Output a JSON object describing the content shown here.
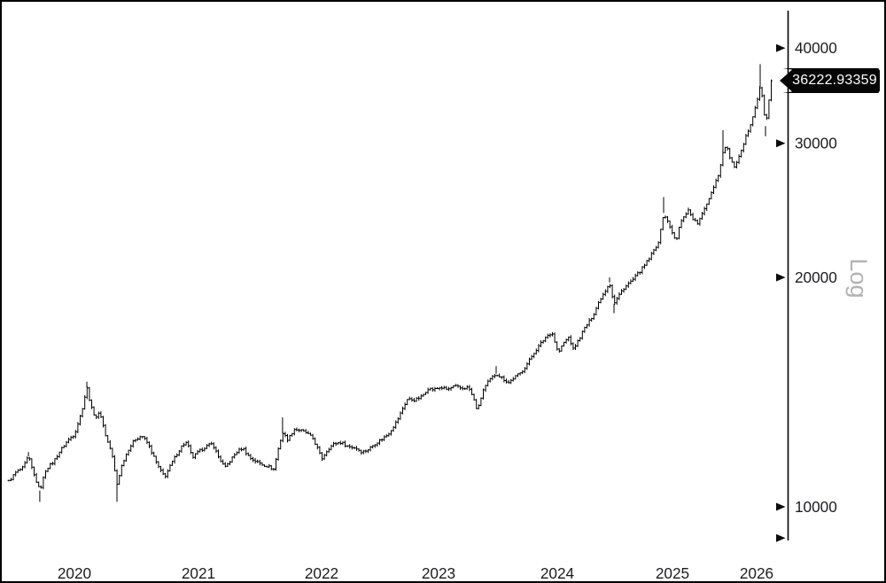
{
  "window": {
    "background": "#ffffff",
    "frame_color": "#000000"
  },
  "chart_data": {
    "type": "ohlc-bar",
    "title": "",
    "scale": "log",
    "scale_label": "Log",
    "grid": "off",
    "series_color": "#000000",
    "axis_color": "#000000",
    "label_color": "#1c1c22",
    "scale_label_color": "#b3b3b3",
    "tag_bg": "#060606",
    "tag_text_color": "#ffffff",
    "last_price": 36222.93359,
    "last_price_label": "36222.93359",
    "x_axis": {
      "labels": [
        "2020",
        "2021",
        "2022",
        "2023",
        "2024",
        "2025",
        "2026"
      ],
      "year_positions": [
        [
          2020,
          82
        ],
        [
          2021,
          222
        ],
        [
          2022,
          361
        ],
        [
          2023,
          493
        ],
        [
          2024,
          627
        ],
        [
          2025,
          757
        ],
        [
          2026,
          852
        ]
      ]
    },
    "y_axis": {
      "side": "right",
      "ticks": [
        {
          "value": 40000,
          "label": "40000"
        },
        {
          "value": 30000,
          "label": "30000"
        },
        {
          "value": 20000,
          "label": "20000"
        },
        {
          "value": 10000,
          "label": "10000"
        },
        {
          "value": 9100,
          "label": ""
        }
      ],
      "range": [
        9000,
        43500
      ]
    },
    "points": [
      [
        2019.471,
        10800
      ],
      [
        2019.529,
        11100
      ],
      [
        2019.586,
        11250
      ],
      [
        2019.629,
        11650
      ],
      [
        2019.671,
        11050
      ],
      [
        2019.721,
        10500
      ],
      [
        2019.771,
        11200
      ],
      [
        2019.829,
        11450
      ],
      [
        2019.886,
        11850
      ],
      [
        2019.943,
        12200
      ],
      [
        2020.0,
        12450
      ],
      [
        2020.057,
        13300
      ],
      [
        2020.1,
        14350
      ],
      [
        2020.136,
        13500
      ],
      [
        2020.171,
        13100
      ],
      [
        2020.207,
        13300
      ],
      [
        2020.257,
        12300
      ],
      [
        2020.3,
        11800
      ],
      [
        2020.343,
        10700
      ],
      [
        2020.386,
        11400
      ],
      [
        2020.436,
        11900
      ],
      [
        2020.486,
        12250
      ],
      [
        2020.543,
        12400
      ],
      [
        2020.593,
        12100
      ],
      [
        2020.643,
        11600
      ],
      [
        2020.686,
        11200
      ],
      [
        2020.729,
        10950
      ],
      [
        2020.771,
        11300
      ],
      [
        2020.821,
        11700
      ],
      [
        2020.871,
        12050
      ],
      [
        2020.907,
        12150
      ],
      [
        2020.95,
        11600
      ],
      [
        2021.0,
        11800
      ],
      [
        2021.058,
        12000
      ],
      [
        2021.115,
        12100
      ],
      [
        2021.165,
        11600
      ],
      [
        2021.216,
        11250
      ],
      [
        2021.259,
        11500
      ],
      [
        2021.309,
        11800
      ],
      [
        2021.36,
        11950
      ],
      [
        2021.417,
        11600
      ],
      [
        2021.475,
        11450
      ],
      [
        2021.525,
        11350
      ],
      [
        2021.568,
        11300
      ],
      [
        2021.612,
        11200
      ],
      [
        2021.655,
        12050
      ],
      [
        2021.683,
        12500
      ],
      [
        2021.727,
        12250
      ],
      [
        2021.777,
        12650
      ],
      [
        2021.827,
        12600
      ],
      [
        2021.878,
        12500
      ],
      [
        2021.928,
        12300
      ],
      [
        2021.971,
        11900
      ],
      [
        2022.0,
        11550
      ],
      [
        2022.053,
        11900
      ],
      [
        2022.106,
        12100
      ],
      [
        2022.167,
        12150
      ],
      [
        2022.227,
        12000
      ],
      [
        2022.288,
        11950
      ],
      [
        2022.348,
        11800
      ],
      [
        2022.402,
        11900
      ],
      [
        2022.455,
        12100
      ],
      [
        2022.508,
        12250
      ],
      [
        2022.568,
        12450
      ],
      [
        2022.629,
        12850
      ],
      [
        2022.659,
        13100
      ],
      [
        2022.697,
        13500
      ],
      [
        2022.735,
        13850
      ],
      [
        2022.795,
        13800
      ],
      [
        2022.856,
        13950
      ],
      [
        2022.909,
        14300
      ],
      [
        2022.962,
        14250
      ],
      [
        2023.015,
        14350
      ],
      [
        2023.075,
        14250
      ],
      [
        2023.134,
        14400
      ],
      [
        2023.194,
        14300
      ],
      [
        2023.254,
        14350
      ],
      [
        2023.299,
        13800
      ],
      [
        2023.328,
        13350
      ],
      [
        2023.373,
        14200
      ],
      [
        2023.425,
        14650
      ],
      [
        2023.485,
        14950
      ],
      [
        2023.537,
        14750
      ],
      [
        2023.59,
        14550
      ],
      [
        2023.642,
        14800
      ],
      [
        2023.694,
        15000
      ],
      [
        2023.746,
        15400
      ],
      [
        2023.799,
        15900
      ],
      [
        2023.851,
        16300
      ],
      [
        2023.903,
        16700
      ],
      [
        2023.955,
        16950
      ],
      [
        2024.008,
        15900
      ],
      [
        2024.054,
        16400
      ],
      [
        2024.1,
        16700
      ],
      [
        2024.138,
        16100
      ],
      [
        2024.185,
        16550
      ],
      [
        2024.231,
        17100
      ],
      [
        2024.277,
        17500
      ],
      [
        2024.323,
        18000
      ],
      [
        2024.369,
        18700
      ],
      [
        2024.415,
        19200
      ],
      [
        2024.454,
        19700
      ],
      [
        2024.492,
        18450
      ],
      [
        2024.531,
        18900
      ],
      [
        2024.569,
        19300
      ],
      [
        2024.615,
        19600
      ],
      [
        2024.662,
        19900
      ],
      [
        2024.708,
        20300
      ],
      [
        2024.754,
        20700
      ],
      [
        2024.8,
        21200
      ],
      [
        2024.846,
        21800
      ],
      [
        2024.885,
        22400
      ],
      [
        2024.923,
        24300
      ],
      [
        2024.962,
        23600
      ],
      [
        2025.0,
        22900
      ],
      [
        2025.042,
        22200
      ],
      [
        2025.084,
        23400
      ],
      [
        2025.137,
        24100
      ],
      [
        2025.189,
        24500
      ],
      [
        2025.242,
        23900
      ],
      [
        2025.295,
        23500
      ],
      [
        2025.347,
        24100
      ],
      [
        2025.4,
        24900
      ],
      [
        2025.453,
        25700
      ],
      [
        2025.505,
        26600
      ],
      [
        2025.558,
        27500
      ],
      [
        2025.6,
        29300
      ],
      [
        2025.642,
        29800
      ],
      [
        2025.684,
        28700
      ],
      [
        2025.726,
        27900
      ],
      [
        2025.768,
        28300
      ],
      [
        2025.821,
        29300
      ],
      [
        2025.874,
        30600
      ],
      [
        2025.926,
        31800
      ],
      [
        2025.968,
        33000
      ],
      [
        2026.011,
        34300
      ],
      [
        2026.042,
        35600
      ],
      [
        2026.074,
        34200
      ],
      [
        2026.105,
        31600
      ],
      [
        2026.137,
        33600
      ],
      [
        2026.168,
        35200
      ],
      [
        2026.2,
        36222.93359
      ]
    ],
    "wicks": [
      {
        "t": 2019.629,
        "hi": 11800
      },
      {
        "t": 2019.721,
        "lo": 10150
      },
      {
        "t": 2020.1,
        "hi": 14600
      },
      {
        "t": 2020.343,
        "lo": 10150
      },
      {
        "t": 2021.683,
        "hi": 13100
      },
      {
        "t": 2023.485,
        "hi": 15300
      },
      {
        "t": 2024.454,
        "hi": 20000
      },
      {
        "t": 2024.492,
        "lo": 17950
      },
      {
        "t": 2024.923,
        "hi": 25500
      },
      {
        "t": 2025.6,
        "hi": 31200
      },
      {
        "t": 2026.042,
        "hi": 38100
      },
      {
        "t": 2026.105,
        "lo": 30650
      }
    ]
  }
}
